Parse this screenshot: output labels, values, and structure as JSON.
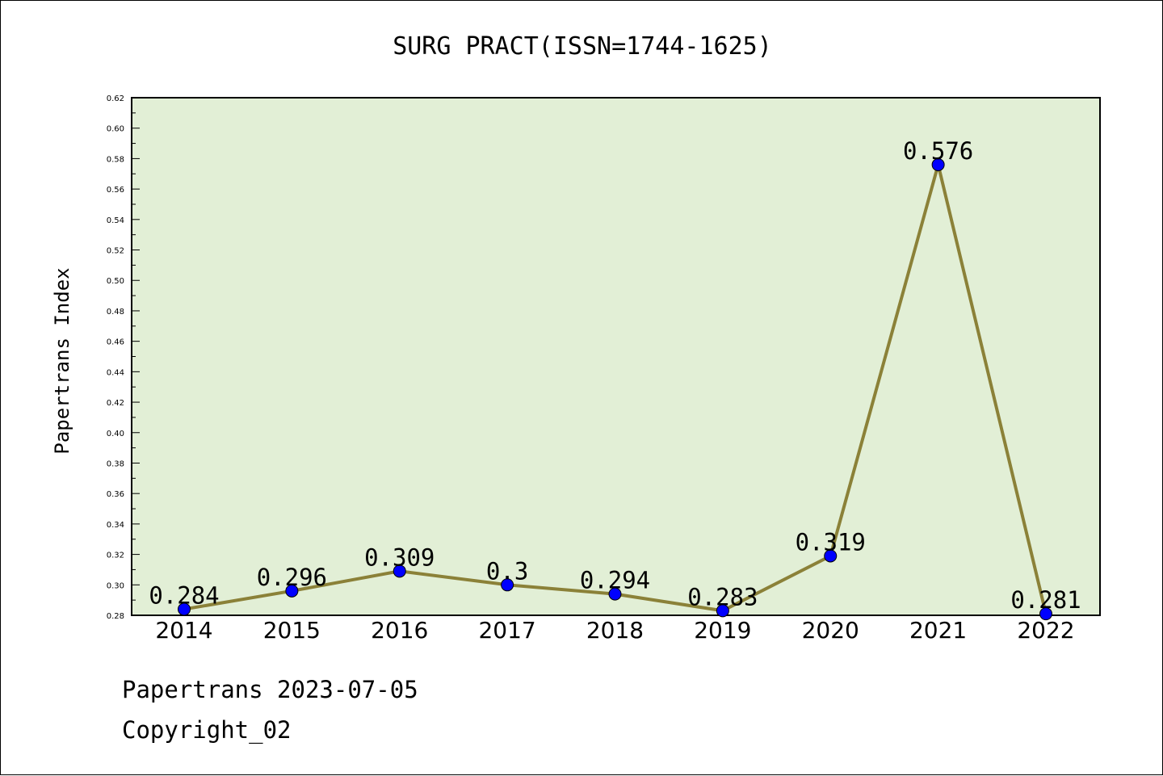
{
  "chart_data": {
    "type": "line",
    "title": "SURG PRACT(ISSN=1744-1625)",
    "xlabel": "",
    "ylabel": "Papertrans Index",
    "categories": [
      "2014",
      "2015",
      "2016",
      "2017",
      "2018",
      "2019",
      "2020",
      "2021",
      "2022"
    ],
    "values": [
      0.284,
      0.296,
      0.309,
      0.3,
      0.294,
      0.283,
      0.319,
      0.576,
      0.281
    ],
    "data_labels": [
      "0.284",
      "0.296",
      "0.309",
      "0.3",
      "0.294",
      "0.283",
      "0.319",
      "0.576",
      "0.281"
    ],
    "ylim": [
      0.28,
      0.62
    ],
    "yticks": [
      "0.28",
      "0.30",
      "0.32",
      "0.34",
      "0.36",
      "0.38",
      "0.40",
      "0.42",
      "0.44",
      "0.46",
      "0.48",
      "0.50",
      "0.52",
      "0.54",
      "0.56",
      "0.58",
      "0.60",
      "0.62"
    ],
    "grid": false,
    "colors": {
      "plot_background": "#e2efd6",
      "line": "#8b8138",
      "marker": "#0000ff"
    }
  },
  "footer": {
    "line1": "Papertrans 2023-07-05",
    "line2": "Copyright_02"
  }
}
